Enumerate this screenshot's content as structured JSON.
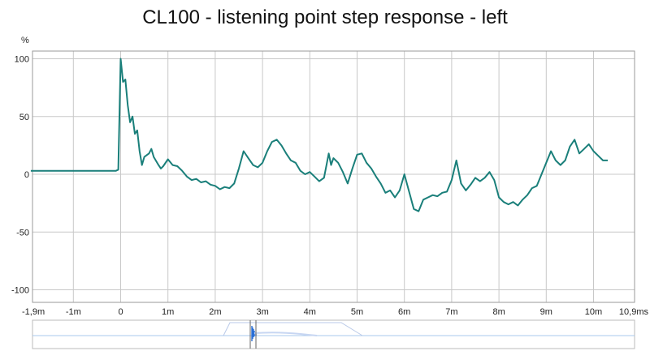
{
  "chart_data": {
    "type": "line",
    "title": "CL100 - listening point step response - left",
    "ylabel": "%",
    "xlabel": "",
    "xlim": [
      -1.9,
      10.9
    ],
    "ylim": [
      -110,
      110
    ],
    "grid": true,
    "y_ticks": [
      100,
      50,
      0,
      -50,
      -100
    ],
    "x_ticks": [
      {
        "value": -1.9,
        "label": "-1,9m"
      },
      {
        "value": -1,
        "label": "-1m"
      },
      {
        "value": 0,
        "label": "0"
      },
      {
        "value": 1,
        "label": "1m"
      },
      {
        "value": 2,
        "label": "2m"
      },
      {
        "value": 3,
        "label": "3m"
      },
      {
        "value": 4,
        "label": "4m"
      },
      {
        "value": 5,
        "label": "5m"
      },
      {
        "value": 6,
        "label": "6m"
      },
      {
        "value": 7,
        "label": "7m"
      },
      {
        "value": 8,
        "label": "8m"
      },
      {
        "value": 9,
        "label": "9m"
      },
      {
        "value": 10,
        "label": "10m"
      },
      {
        "value": 10.9,
        "label": "10,9ms"
      }
    ],
    "series": [
      {
        "color": "#1a7f7a",
        "points": [
          [
            -1.9,
            3
          ],
          [
            -0.1,
            3
          ],
          [
            -0.05,
            4
          ],
          [
            0.0,
            100
          ],
          [
            0.05,
            80
          ],
          [
            0.1,
            82
          ],
          [
            0.15,
            60
          ],
          [
            0.2,
            45
          ],
          [
            0.25,
            50
          ],
          [
            0.3,
            35
          ],
          [
            0.35,
            38
          ],
          [
            0.4,
            20
          ],
          [
            0.45,
            8
          ],
          [
            0.5,
            15
          ],
          [
            0.6,
            18
          ],
          [
            0.65,
            22
          ],
          [
            0.7,
            15
          ],
          [
            0.8,
            8
          ],
          [
            0.85,
            5
          ],
          [
            0.9,
            7
          ],
          [
            1.0,
            13
          ],
          [
            1.1,
            8
          ],
          [
            1.2,
            7
          ],
          [
            1.3,
            3
          ],
          [
            1.4,
            -2
          ],
          [
            1.5,
            -5
          ],
          [
            1.6,
            -4
          ],
          [
            1.7,
            -7
          ],
          [
            1.8,
            -6
          ],
          [
            1.9,
            -9
          ],
          [
            2.0,
            -10
          ],
          [
            2.1,
            -13
          ],
          [
            2.2,
            -11
          ],
          [
            2.3,
            -12
          ],
          [
            2.4,
            -8
          ],
          [
            2.5,
            5
          ],
          [
            2.6,
            20
          ],
          [
            2.7,
            14
          ],
          [
            2.8,
            8
          ],
          [
            2.9,
            6
          ],
          [
            3.0,
            10
          ],
          [
            3.1,
            20
          ],
          [
            3.2,
            28
          ],
          [
            3.3,
            30
          ],
          [
            3.4,
            25
          ],
          [
            3.5,
            18
          ],
          [
            3.6,
            12
          ],
          [
            3.7,
            10
          ],
          [
            3.8,
            3
          ],
          [
            3.9,
            0
          ],
          [
            4.0,
            2
          ],
          [
            4.1,
            -2
          ],
          [
            4.2,
            -6
          ],
          [
            4.3,
            -3
          ],
          [
            4.4,
            18
          ],
          [
            4.45,
            8
          ],
          [
            4.5,
            14
          ],
          [
            4.6,
            10
          ],
          [
            4.7,
            2
          ],
          [
            4.8,
            -8
          ],
          [
            4.9,
            5
          ],
          [
            5.0,
            17
          ],
          [
            5.1,
            18
          ],
          [
            5.2,
            10
          ],
          [
            5.3,
            5
          ],
          [
            5.4,
            -2
          ],
          [
            5.5,
            -8
          ],
          [
            5.6,
            -16
          ],
          [
            5.7,
            -14
          ],
          [
            5.8,
            -20
          ],
          [
            5.9,
            -14
          ],
          [
            6.0,
            0
          ],
          [
            6.1,
            -15
          ],
          [
            6.2,
            -30
          ],
          [
            6.3,
            -32
          ],
          [
            6.4,
            -22
          ],
          [
            6.5,
            -20
          ],
          [
            6.6,
            -18
          ],
          [
            6.7,
            -19
          ],
          [
            6.8,
            -16
          ],
          [
            6.9,
            -15
          ],
          [
            7.0,
            -5
          ],
          [
            7.1,
            12
          ],
          [
            7.2,
            -8
          ],
          [
            7.3,
            -14
          ],
          [
            7.4,
            -9
          ],
          [
            7.5,
            -3
          ],
          [
            7.6,
            -6
          ],
          [
            7.7,
            -3
          ],
          [
            7.8,
            2
          ],
          [
            7.9,
            -5
          ],
          [
            8.0,
            -20
          ],
          [
            8.1,
            -24
          ],
          [
            8.2,
            -26
          ],
          [
            8.3,
            -24
          ],
          [
            8.4,
            -27
          ],
          [
            8.5,
            -22
          ],
          [
            8.6,
            -18
          ],
          [
            8.7,
            -12
          ],
          [
            8.8,
            -10
          ],
          [
            8.9,
            0
          ],
          [
            9.0,
            10
          ],
          [
            9.1,
            20
          ],
          [
            9.2,
            12
          ],
          [
            9.3,
            8
          ],
          [
            9.4,
            12
          ],
          [
            9.5,
            24
          ],
          [
            9.6,
            30
          ],
          [
            9.7,
            18
          ],
          [
            9.8,
            22
          ],
          [
            9.9,
            26
          ],
          [
            10.0,
            20
          ],
          [
            10.1,
            16
          ],
          [
            10.2,
            12
          ],
          [
            10.3,
            12
          ]
        ]
      }
    ]
  },
  "colors": {
    "plot_border": "#9a9a9a",
    "grid": "#c8c8c8",
    "overview_line": "#9ec3e8",
    "overview_burst": "#2a6fd6",
    "overview_marker": "#555555"
  }
}
